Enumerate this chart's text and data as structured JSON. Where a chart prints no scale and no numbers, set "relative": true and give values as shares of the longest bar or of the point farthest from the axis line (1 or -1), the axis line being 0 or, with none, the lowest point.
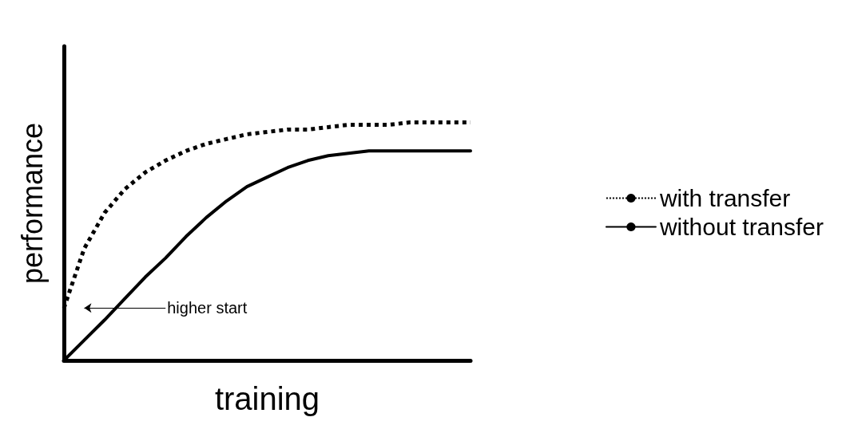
{
  "chart_data": {
    "type": "line",
    "relative": true,
    "xlabel": "training",
    "ylabel": "performance",
    "legend": "right",
    "marker": "none",
    "grid": false,
    "categories": [
      null,
      null,
      null,
      null,
      null,
      null,
      null,
      null,
      null,
      null,
      null,
      null,
      null,
      null,
      null,
      null,
      null,
      null,
      null,
      null,
      null
    ],
    "series": [
      {
        "name": "with transfer",
        "color": "#000000",
        "line_style": "dotted",
        "values": [
          0.22,
          0.47,
          0.62,
          0.72,
          0.79,
          0.84,
          0.88,
          0.91,
          0.93,
          0.95,
          0.96,
          0.97,
          0.97,
          0.98,
          0.99,
          0.99,
          0.99,
          1,
          1,
          1,
          1
        ]
      },
      {
        "name": "without transfer",
        "color": "#000000",
        "line_style": "solid",
        "values": [
          0,
          0.085,
          0.17,
          0.26,
          0.35,
          0.43,
          0.52,
          0.6,
          0.67,
          0.73,
          0.77,
          0.81,
          0.84,
          0.86,
          0.87,
          0.88,
          0.88,
          0.88,
          0.88,
          0.88,
          0.88
        ]
      }
    ],
    "annotations": [
      "higher start"
    ]
  }
}
